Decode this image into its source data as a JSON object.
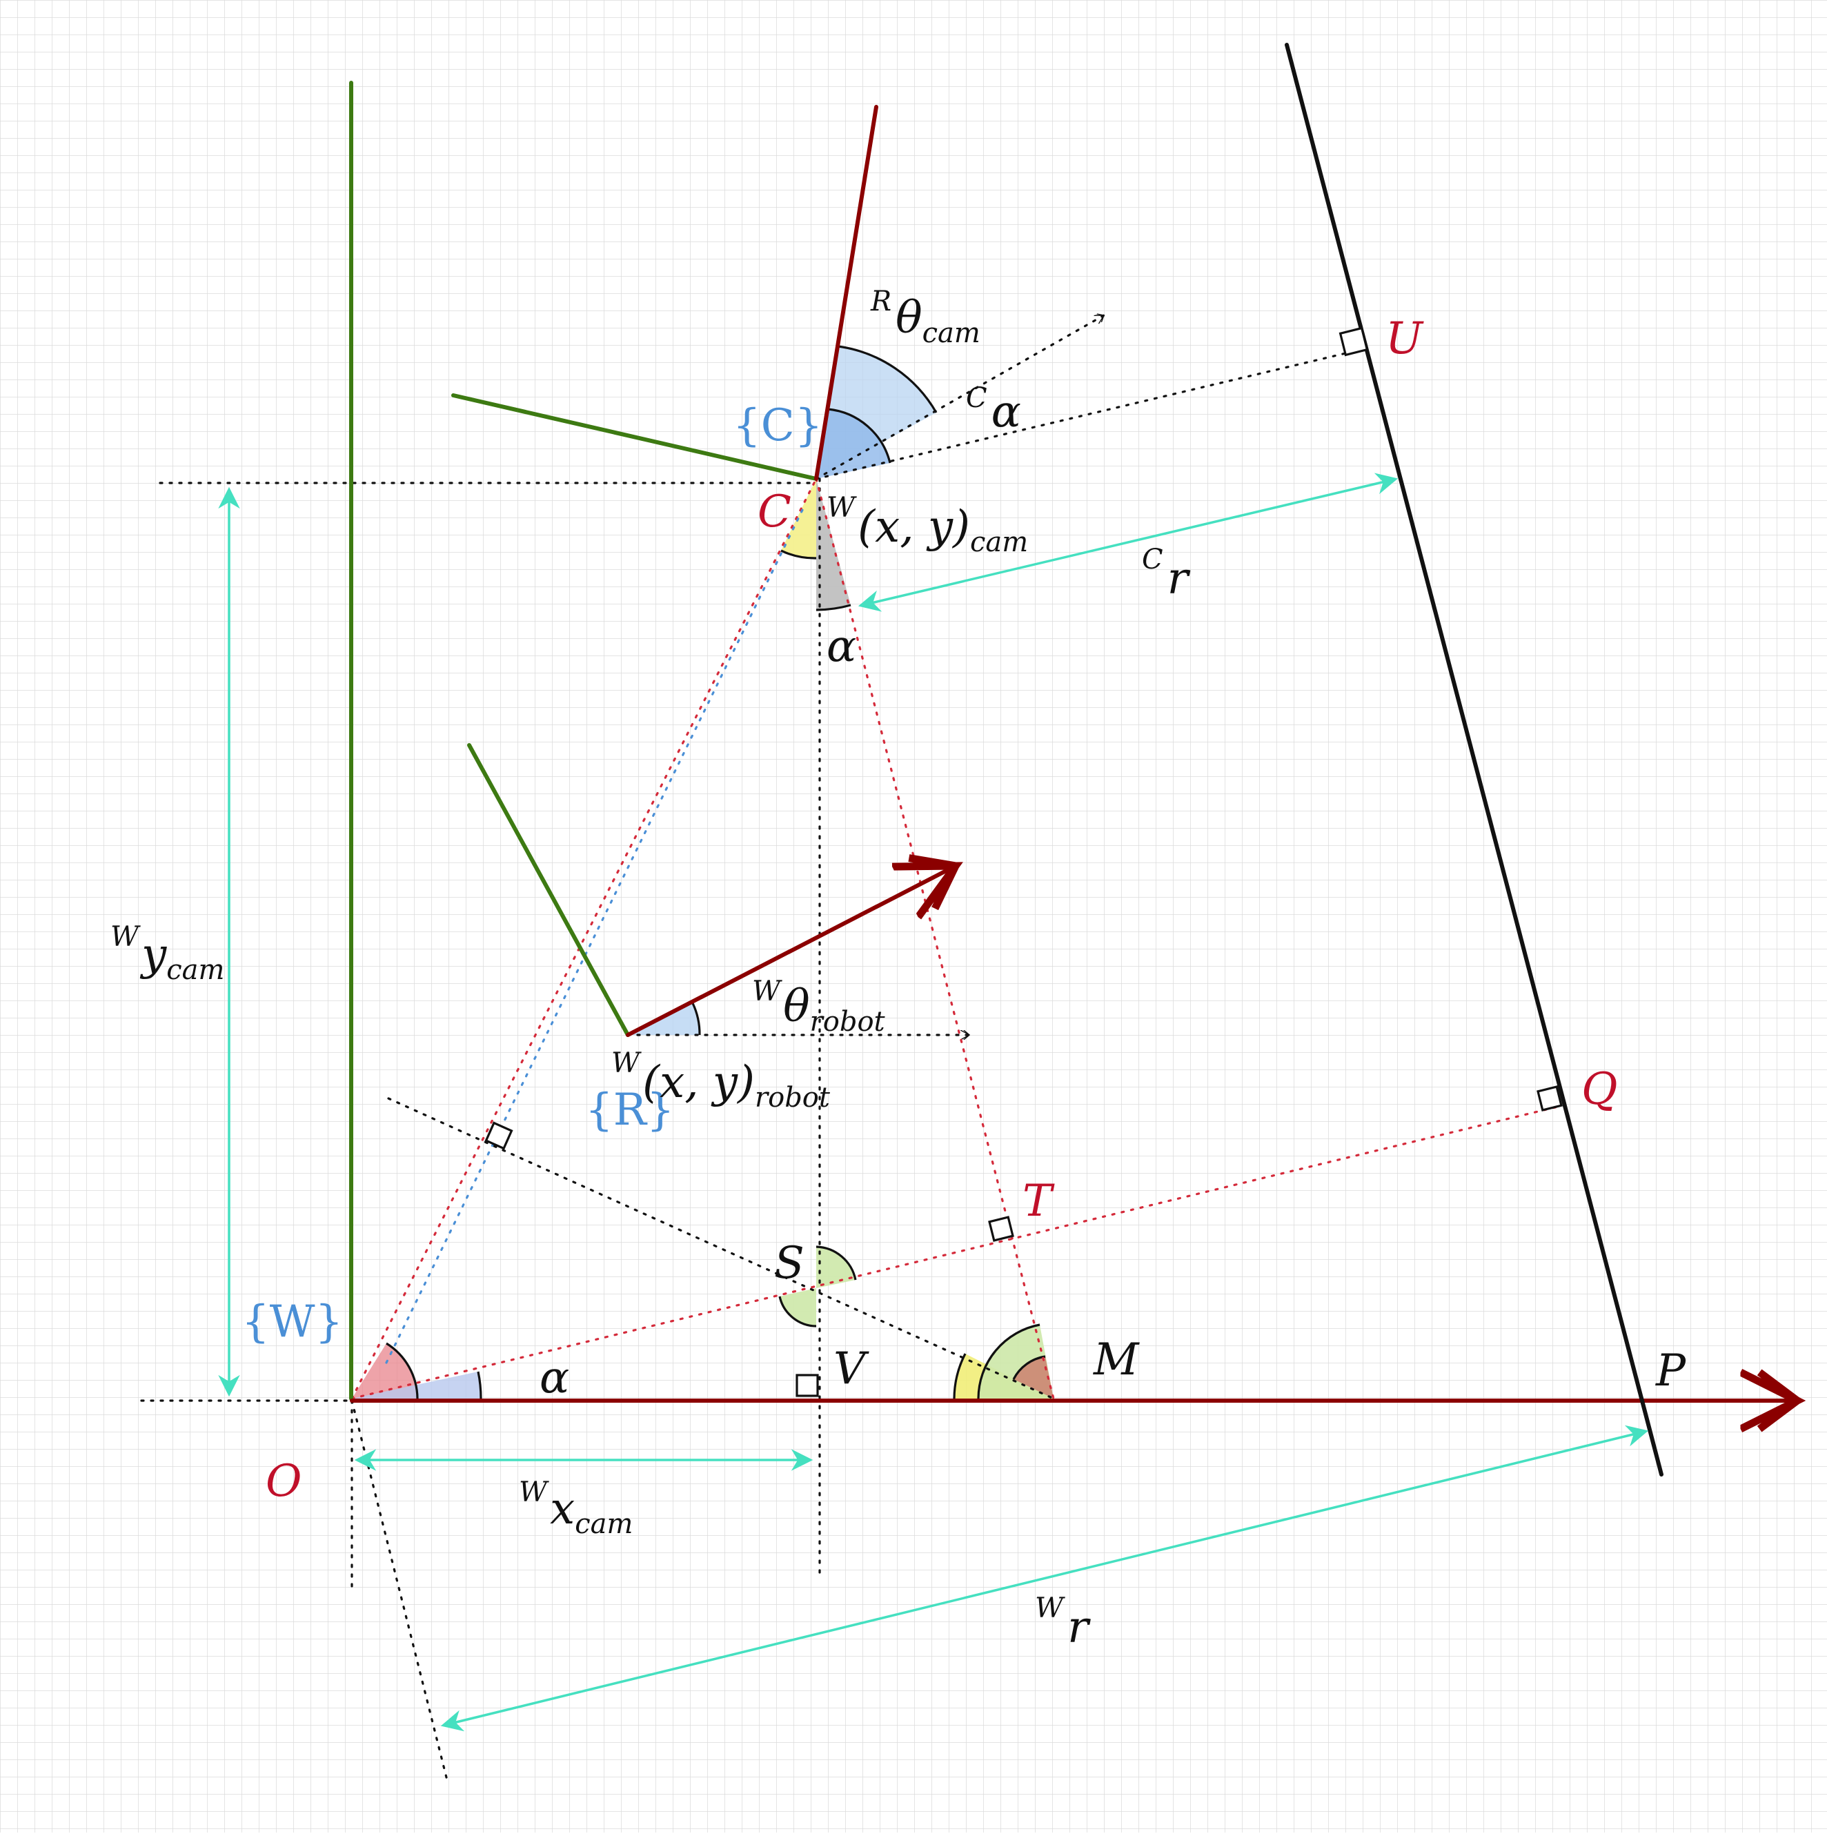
{
  "colors": {
    "grid": "#dcdcdc",
    "dark_red": "#8b0000",
    "green": "#3d7a12",
    "teal": "#45e0c0",
    "black": "#111111",
    "label_red": "#c0102a",
    "label_blue": "#4a8fd6",
    "dot_red": "#d42a3a",
    "dot_blue": "#4a8fd6"
  },
  "labels": {
    "U": "U",
    "Q": "Q",
    "T": "T",
    "S": "S",
    "V": "V",
    "M": "M",
    "P": "P",
    "O": "O",
    "C": "C",
    "frame_C": "{C}",
    "frame_W": "{W}",
    "frame_R": "{R}",
    "alpha_cam": "α",
    "alpha_base": "α",
    "c_alpha_sup": "C",
    "c_alpha": "α",
    "r_theta_sup": "R",
    "r_theta": "θ",
    "r_theta_sub": "cam",
    "w_xy_cam_sup": "W",
    "w_xy_cam": "(x, y)",
    "w_xy_cam_sub": "cam",
    "w_xy_robot_sup": "W",
    "w_xy_robot": "(x, y)",
    "w_xy_robot_sub": "robot",
    "w_theta_sup": "W",
    "w_theta": "θ",
    "w_theta_sub": "robot",
    "w_y_sup": "W",
    "w_y": "y",
    "w_y_sub": "cam",
    "w_x_sup": "W",
    "w_x": "x",
    "w_x_sub": "cam",
    "c_r_sup": "C",
    "c_r": "r",
    "w_r_sup": "W",
    "w_r": "r"
  }
}
